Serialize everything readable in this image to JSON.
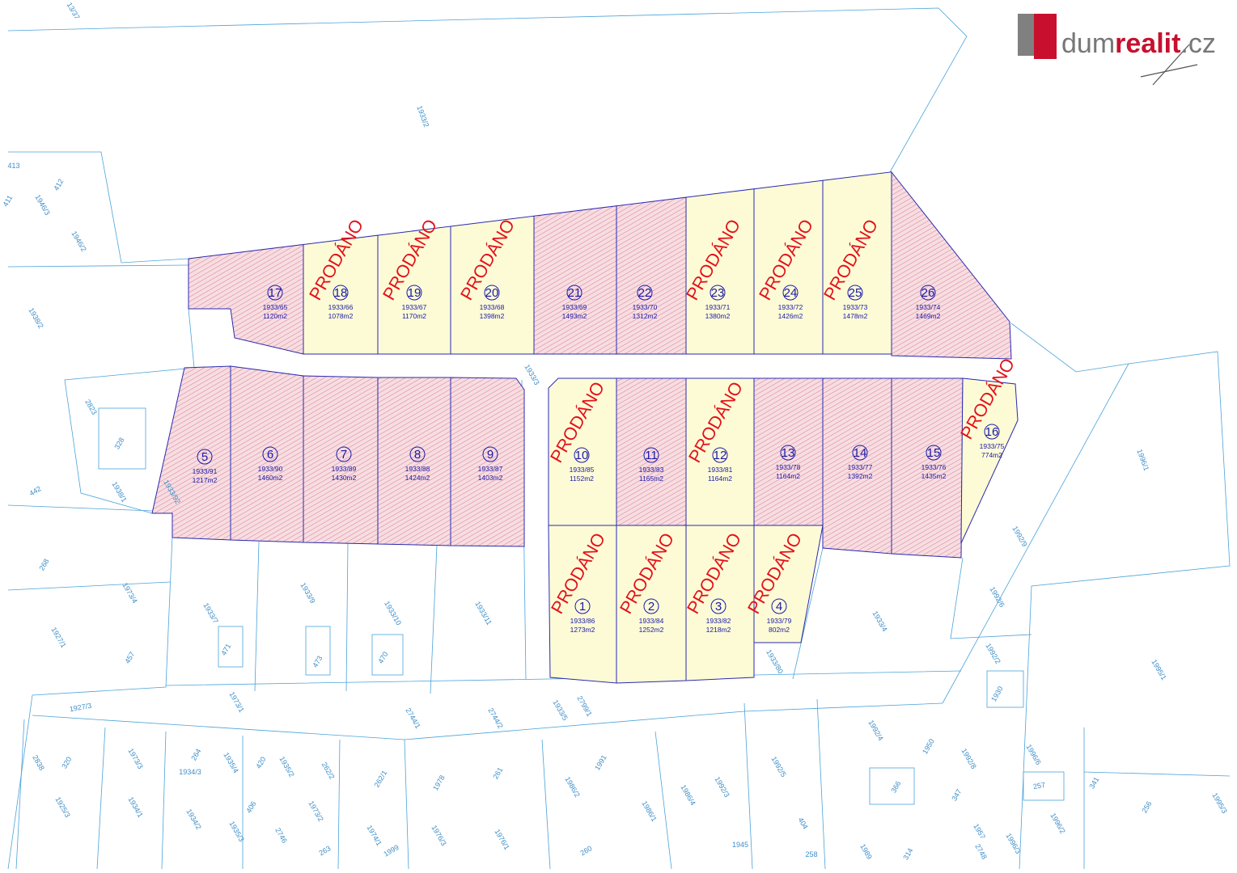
{
  "logo": {
    "part1": "dum",
    "part2": "realit",
    "part3": ".cz"
  },
  "plots": [
    {
      "number": 17,
      "parcel": "1933/65",
      "area": "1120m2"
    },
    {
      "number": 18,
      "parcel": "1933/66",
      "area": "1078m2",
      "sold": "PRODÁNO"
    },
    {
      "number": 19,
      "parcel": "1933/67",
      "area": "1170m2",
      "sold": "PRODÁNO"
    },
    {
      "number": 20,
      "parcel": "1933/68",
      "area": "1398m2",
      "sold": "PRODÁNO"
    },
    {
      "number": 21,
      "parcel": "1933/69",
      "area": "1493m2"
    },
    {
      "number": 22,
      "parcel": "1933/70",
      "area": "1312m2"
    },
    {
      "number": 23,
      "parcel": "1933/71",
      "area": "1380m2",
      "sold": "PRODÁNO"
    },
    {
      "number": 24,
      "parcel": "1933/72",
      "area": "1426m2",
      "sold": "PRODÁNO"
    },
    {
      "number": 25,
      "parcel": "1933/73",
      "area": "1478m2",
      "sold": "PRODÁNO"
    },
    {
      "number": 26,
      "parcel": "1933/74",
      "area": "1469m2"
    },
    {
      "number": 5,
      "parcel": "1933/91",
      "area": "1217m2"
    },
    {
      "number": 6,
      "parcel": "1933/90",
      "area": "1460m2"
    },
    {
      "number": 7,
      "parcel": "1933/89",
      "area": "1430m2"
    },
    {
      "number": 8,
      "parcel": "1933/88",
      "area": "1424m2"
    },
    {
      "number": 9,
      "parcel": "1933/87",
      "area": "1403m2"
    },
    {
      "number": 10,
      "parcel": "1933/85",
      "area": "1152m2",
      "sold": "PRODÁNO"
    },
    {
      "number": 11,
      "parcel": "1933/83",
      "area": "1165m2"
    },
    {
      "number": 12,
      "parcel": "1933/81",
      "area": "1164m2",
      "sold": "PRODÁNO"
    },
    {
      "number": 13,
      "parcel": "1933/78",
      "area": "1164m2"
    },
    {
      "number": 14,
      "parcel": "1933/77",
      "area": "1392m2"
    },
    {
      "number": 15,
      "parcel": "1933/76",
      "area": "1435m2"
    },
    {
      "number": 16,
      "parcel": "1933/75",
      "area": "774m2",
      "sold": "PRODÁNO"
    },
    {
      "number": 1,
      "parcel": "1933/86",
      "area": "1273m2",
      "sold": "PRODÁNO"
    },
    {
      "number": 2,
      "parcel": "1933/84",
      "area": "1252m2",
      "sold": "PRODÁNO"
    },
    {
      "number": 3,
      "parcel": "1933/82",
      "area": "1218m2",
      "sold": "PRODÁNO"
    },
    {
      "number": 4,
      "parcel": "1933/79",
      "area": "802m2",
      "sold": "PRODÁNO"
    }
  ],
  "parcel_labels": [
    "1933/2",
    "1946/3",
    "1946/2",
    "1938/2",
    "2823",
    "328",
    "442",
    "1938/1",
    "1933/92",
    "268",
    "1973/4",
    "1927/1",
    "457",
    "1933/7",
    "471",
    "1933/9",
    "473",
    "1933/10",
    "470",
    "1933/11",
    "1933/4",
    "1933/80",
    "1927/3",
    "1973/1",
    "2744/1",
    "2744/2",
    "1933/5",
    "2799/1",
    "1996/1",
    "1992/9",
    "1992/6",
    "1992/2",
    "1930",
    "1995/1",
    "1992/4",
    "1950",
    "1992/8",
    "1996/6",
    "2838",
    "320",
    "1973/3",
    "264",
    "1935/4",
    "420",
    "1935/2",
    "262/2",
    "262/1",
    "1978",
    "261",
    "1986/2",
    "1991",
    "1986/1",
    "1986/4",
    "1992/3",
    "1992/5",
    "366",
    "347",
    "257",
    "341",
    "256",
    "1995/3",
    "1996/2",
    "404",
    "1925/3",
    "1934/1",
    "1934/2",
    "406",
    "1935/3",
    "1973/2",
    "2746",
    "1974/1",
    "1999",
    "1976/3",
    "1976/1",
    "260",
    "263",
    "1934/3",
    "1945",
    "258",
    "1989",
    "314",
    "1957",
    "2748",
    "1996/3",
    "413",
    "412",
    "411",
    "13/37",
    "1933/3"
  ]
}
